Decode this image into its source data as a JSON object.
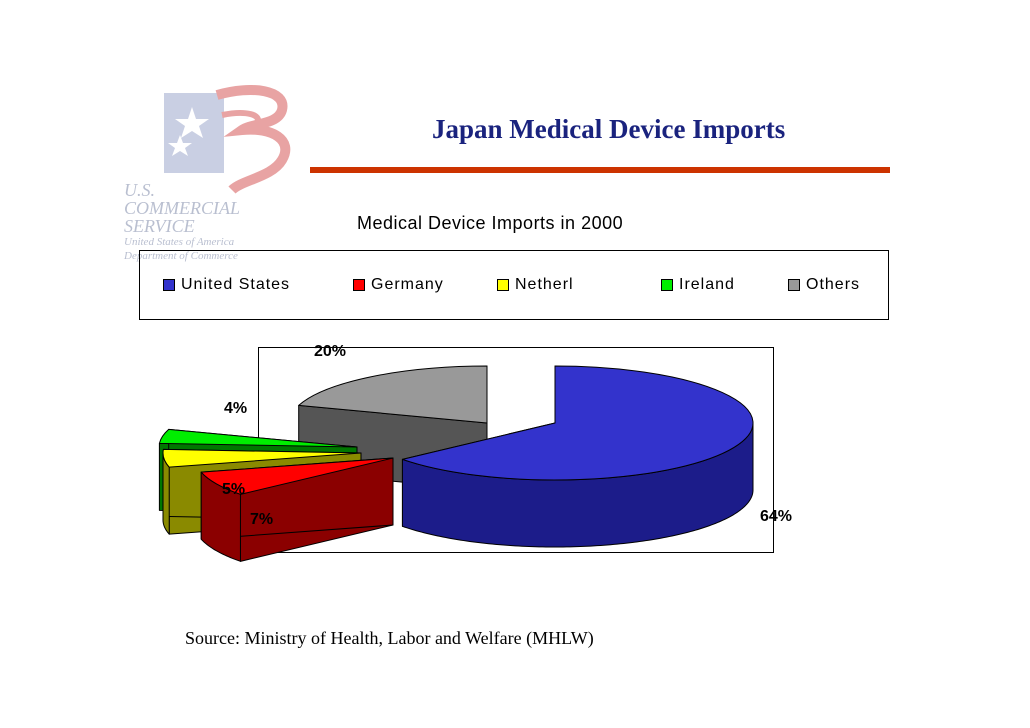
{
  "logo": {
    "lines": [
      "U.S.",
      "COMMERCIAL",
      "SERVICE",
      "United States of America",
      "Department of Commerce"
    ]
  },
  "slide": {
    "title": "Japan Medical Device Imports",
    "source": "Source: Ministry of Health, Labor and Welfare (MHLW)"
  },
  "colors": {
    "title_text": "#1a237e",
    "title_rule": "#cc3300"
  },
  "chart_data": {
    "type": "pie",
    "style": "3d-exploded",
    "title": "Medical Device Imports in 2000",
    "legend_position": "top",
    "slices": [
      {
        "name": "United States",
        "value": 64,
        "label": "64%",
        "color": "#3333cc",
        "side_color": "#1c1c8a"
      },
      {
        "name": "Germany",
        "value": 7,
        "label": "7%",
        "color": "#ff0000",
        "side_color": "#8b0000"
      },
      {
        "name": "Netherl",
        "value": 5,
        "label": "5%",
        "color": "#ffff00",
        "side_color": "#8a8a00"
      },
      {
        "name": "Ireland",
        "value": 4,
        "label": "4%",
        "color": "#00ee00",
        "side_color": "#007700"
      },
      {
        "name": "Others",
        "value": 20,
        "label": "20%",
        "color": "#999999",
        "side_color": "#555555"
      }
    ]
  }
}
